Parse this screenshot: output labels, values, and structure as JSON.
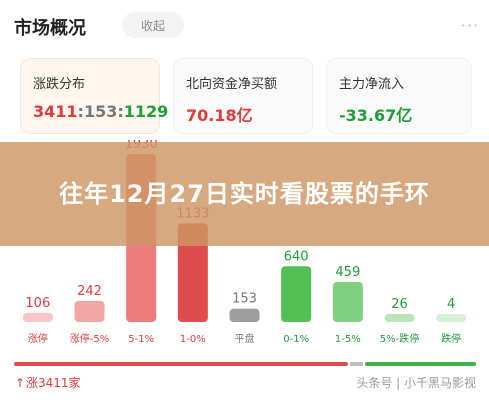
{
  "header": {
    "title": "市场概况",
    "collapse_label": "收起",
    "more": "···"
  },
  "cards": [
    {
      "label": "涨跌分布",
      "up": "3411",
      "flat": "153",
      "down": "1129"
    },
    {
      "label": "北向资金净买额",
      "value": "70.18亿"
    },
    {
      "label": "主力净流入",
      "value": "-33.67亿"
    }
  ],
  "banner": {
    "text": "往年12月27日实时看股票的手环"
  },
  "chart_data": {
    "type": "bar",
    "categories": [
      "涨停",
      "涨停-5%",
      "5-1%",
      "1-0%",
      "平盘",
      "0-1%",
      "1-5%",
      "5%-跌停",
      "跌停"
    ],
    "values": [
      106,
      242,
      1930,
      1133,
      153,
      640,
      459,
      26,
      4
    ],
    "colors": [
      "#f7c6c6",
      "#f3a6a6",
      "#ee7c7c",
      "#e04b4b",
      "#9e9e9e",
      "#54bf55",
      "#7fd07f",
      "#b9e3b9",
      "#d6efd6"
    ],
    "label_colors": [
      "#e23b3b",
      "#e23b3b",
      "#e23b3b",
      "#e23b3b",
      "#777777",
      "#1f9d3a",
      "#1f9d3a",
      "#1f9d3a",
      "#1f9d3a"
    ]
  },
  "distribution": {
    "up": 3411,
    "flat": 153,
    "down": 1129
  },
  "footer": {
    "up_arrow": "↑",
    "up_text": "涨3411家",
    "watermark": "头条号 | 小千黑马影视"
  },
  "colors": {
    "up": "#e23b3b",
    "down": "#1f9d3a",
    "flat": "#777777",
    "banner": "#cd9664"
  }
}
